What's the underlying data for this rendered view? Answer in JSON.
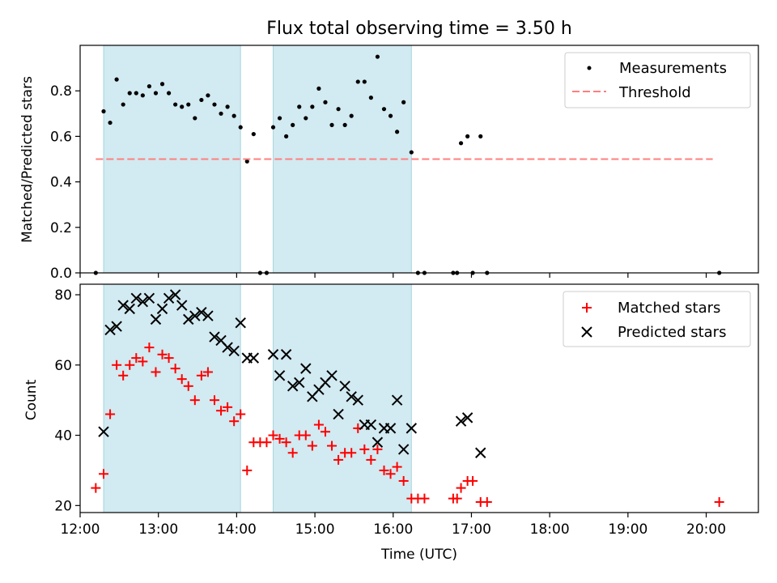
{
  "chart_data": [
    {
      "type": "scatter",
      "title": "Flux total observing time = 3.50 h",
      "ylabel": "Matched/Predicted stars",
      "xlabel": "",
      "xlim": [
        "12:00",
        "20:40"
      ],
      "ylim": [
        0,
        1.0
      ],
      "yticks": [
        0.0,
        0.2,
        0.4,
        0.6,
        0.8
      ],
      "ytick_labels": [
        "0.0",
        "0.2",
        "0.4",
        "0.6",
        "0.8"
      ],
      "legend_position": "top-right",
      "shaded_intervals": [
        [
          "12:18",
          "14:03"
        ],
        [
          "14:28",
          "16:14"
        ]
      ],
      "shade_color": "#add8e6",
      "series": [
        {
          "name": "Measurements",
          "marker": "dot",
          "color": "#000000",
          "points": [
            [
              "12:12",
              0.0
            ],
            [
              "12:18",
              0.71
            ],
            [
              "12:23",
              0.66
            ],
            [
              "12:28",
              0.85
            ],
            [
              "12:33",
              0.74
            ],
            [
              "12:38",
              0.79
            ],
            [
              "12:43",
              0.79
            ],
            [
              "12:48",
              0.78
            ],
            [
              "12:53",
              0.82
            ],
            [
              "12:58",
              0.79
            ],
            [
              "13:03",
              0.83
            ],
            [
              "13:08",
              0.79
            ],
            [
              "13:13",
              0.74
            ],
            [
              "13:18",
              0.73
            ],
            [
              "13:23",
              0.74
            ],
            [
              "13:28",
              0.68
            ],
            [
              "13:33",
              0.76
            ],
            [
              "13:38",
              0.78
            ],
            [
              "13:43",
              0.74
            ],
            [
              "13:48",
              0.7
            ],
            [
              "13:53",
              0.73
            ],
            [
              "13:58",
              0.69
            ],
            [
              "14:03",
              0.64
            ],
            [
              "14:08",
              0.49
            ],
            [
              "14:13",
              0.61
            ],
            [
              "14:18",
              0.0
            ],
            [
              "14:23",
              0.0
            ],
            [
              "14:28",
              0.64
            ],
            [
              "14:33",
              0.68
            ],
            [
              "14:38",
              0.6
            ],
            [
              "14:43",
              0.65
            ],
            [
              "14:48",
              0.73
            ],
            [
              "14:53",
              0.68
            ],
            [
              "14:58",
              0.73
            ],
            [
              "15:03",
              0.81
            ],
            [
              "15:08",
              0.75
            ],
            [
              "15:13",
              0.65
            ],
            [
              "15:18",
              0.72
            ],
            [
              "15:23",
              0.65
            ],
            [
              "15:28",
              0.69
            ],
            [
              "15:33",
              0.84
            ],
            [
              "15:38",
              0.84
            ],
            [
              "15:43",
              0.77
            ],
            [
              "15:48",
              0.95
            ],
            [
              "15:53",
              0.72
            ],
            [
              "15:58",
              0.69
            ],
            [
              "16:03",
              0.62
            ],
            [
              "16:08",
              0.75
            ],
            [
              "16:14",
              0.53
            ],
            [
              "16:19",
              0.0
            ],
            [
              "16:24",
              0.0
            ],
            [
              "16:46",
              0.0
            ],
            [
              "16:49",
              0.0
            ],
            [
              "16:52",
              0.57
            ],
            [
              "16:57",
              0.6
            ],
            [
              "17:01",
              0.0
            ],
            [
              "17:07",
              0.6
            ],
            [
              "17:12",
              0.0
            ],
            [
              "20:10",
              0.0
            ]
          ]
        },
        {
          "name": "Threshold",
          "marker": "dashed-line",
          "color": "#ff7f7f",
          "points": [
            [
              "12:12",
              0.5
            ],
            [
              "20:05",
              0.5
            ]
          ]
        }
      ]
    },
    {
      "type": "scatter",
      "title": "",
      "ylabel": "Count",
      "xlabel": "Time (UTC)",
      "xlim": [
        "12:00",
        "20:40"
      ],
      "ylim": [
        18,
        83
      ],
      "yticks": [
        20,
        40,
        60,
        80
      ],
      "ytick_labels": [
        "20",
        "40",
        "60",
        "80"
      ],
      "xticks": [
        "12:00",
        "13:00",
        "14:00",
        "15:00",
        "16:00",
        "17:00",
        "18:00",
        "19:00",
        "20:00"
      ],
      "legend_position": "top-right",
      "shaded_intervals": [
        [
          "12:18",
          "14:03"
        ],
        [
          "14:28",
          "16:14"
        ]
      ],
      "shade_color": "#add8e6",
      "series": [
        {
          "name": "Matched stars",
          "marker": "plus",
          "color": "#ff0000",
          "points": [
            [
              "12:12",
              25
            ],
            [
              "12:18",
              29
            ],
            [
              "12:23",
              46
            ],
            [
              "12:28",
              60
            ],
            [
              "12:33",
              57
            ],
            [
              "12:38",
              60
            ],
            [
              "12:43",
              62
            ],
            [
              "12:48",
              61
            ],
            [
              "12:53",
              65
            ],
            [
              "12:58",
              58
            ],
            [
              "13:03",
              63
            ],
            [
              "13:08",
              62
            ],
            [
              "13:13",
              59
            ],
            [
              "13:18",
              56
            ],
            [
              "13:23",
              54
            ],
            [
              "13:28",
              50
            ],
            [
              "13:33",
              57
            ],
            [
              "13:38",
              58
            ],
            [
              "13:43",
              50
            ],
            [
              "13:48",
              47
            ],
            [
              "13:53",
              48
            ],
            [
              "13:58",
              44
            ],
            [
              "14:03",
              46
            ],
            [
              "14:08",
              30
            ],
            [
              "14:13",
              38
            ],
            [
              "14:18",
              38
            ],
            [
              "14:23",
              38
            ],
            [
              "14:28",
              40
            ],
            [
              "14:33",
              39
            ],
            [
              "14:38",
              38
            ],
            [
              "14:43",
              35
            ],
            [
              "14:48",
              40
            ],
            [
              "14:53",
              40
            ],
            [
              "14:58",
              37
            ],
            [
              "15:03",
              43
            ],
            [
              "15:08",
              41
            ],
            [
              "15:13",
              37
            ],
            [
              "15:18",
              33
            ],
            [
              "15:23",
              35
            ],
            [
              "15:28",
              35
            ],
            [
              "15:33",
              42
            ],
            [
              "15:38",
              36
            ],
            [
              "15:43",
              33
            ],
            [
              "15:48",
              36
            ],
            [
              "15:53",
              30
            ],
            [
              "15:58",
              29
            ],
            [
              "16:03",
              31
            ],
            [
              "16:08",
              27
            ],
            [
              "16:14",
              22
            ],
            [
              "16:19",
              22
            ],
            [
              "16:24",
              22
            ],
            [
              "16:46",
              22
            ],
            [
              "16:49",
              22
            ],
            [
              "16:52",
              25
            ],
            [
              "16:57",
              27
            ],
            [
              "17:01",
              27
            ],
            [
              "17:07",
              21
            ],
            [
              "17:12",
              21
            ],
            [
              "20:10",
              21
            ]
          ]
        },
        {
          "name": "Predicted stars",
          "marker": "x",
          "color": "#000000",
          "points": [
            [
              "12:18",
              41
            ],
            [
              "12:23",
              70
            ],
            [
              "12:28",
              71
            ],
            [
              "12:33",
              77
            ],
            [
              "12:38",
              76
            ],
            [
              "12:43",
              79
            ],
            [
              "12:48",
              78
            ],
            [
              "12:53",
              79
            ],
            [
              "12:58",
              73
            ],
            [
              "13:03",
              76
            ],
            [
              "13:08",
              79
            ],
            [
              "13:13",
              80
            ],
            [
              "13:18",
              77
            ],
            [
              "13:23",
              73
            ],
            [
              "13:28",
              74
            ],
            [
              "13:33",
              75
            ],
            [
              "13:38",
              74
            ],
            [
              "13:43",
              68
            ],
            [
              "13:48",
              67
            ],
            [
              "13:53",
              65
            ],
            [
              "13:58",
              64
            ],
            [
              "14:03",
              72
            ],
            [
              "14:08",
              62
            ],
            [
              "14:13",
              62
            ],
            [
              "14:28",
              63
            ],
            [
              "14:33",
              57
            ],
            [
              "14:38",
              63
            ],
            [
              "14:43",
              54
            ],
            [
              "14:48",
              55
            ],
            [
              "14:53",
              59
            ],
            [
              "14:58",
              51
            ],
            [
              "15:03",
              53
            ],
            [
              "15:08",
              55
            ],
            [
              "15:13",
              57
            ],
            [
              "15:18",
              46
            ],
            [
              "15:23",
              54
            ],
            [
              "15:28",
              51
            ],
            [
              "15:33",
              50
            ],
            [
              "15:38",
              43
            ],
            [
              "15:43",
              43
            ],
            [
              "15:48",
              38
            ],
            [
              "15:53",
              42
            ],
            [
              "15:58",
              42
            ],
            [
              "16:03",
              50
            ],
            [
              "16:08",
              36
            ],
            [
              "16:14",
              42
            ],
            [
              "16:52",
              44
            ],
            [
              "16:57",
              45
            ],
            [
              "17:07",
              35
            ]
          ]
        }
      ]
    }
  ]
}
